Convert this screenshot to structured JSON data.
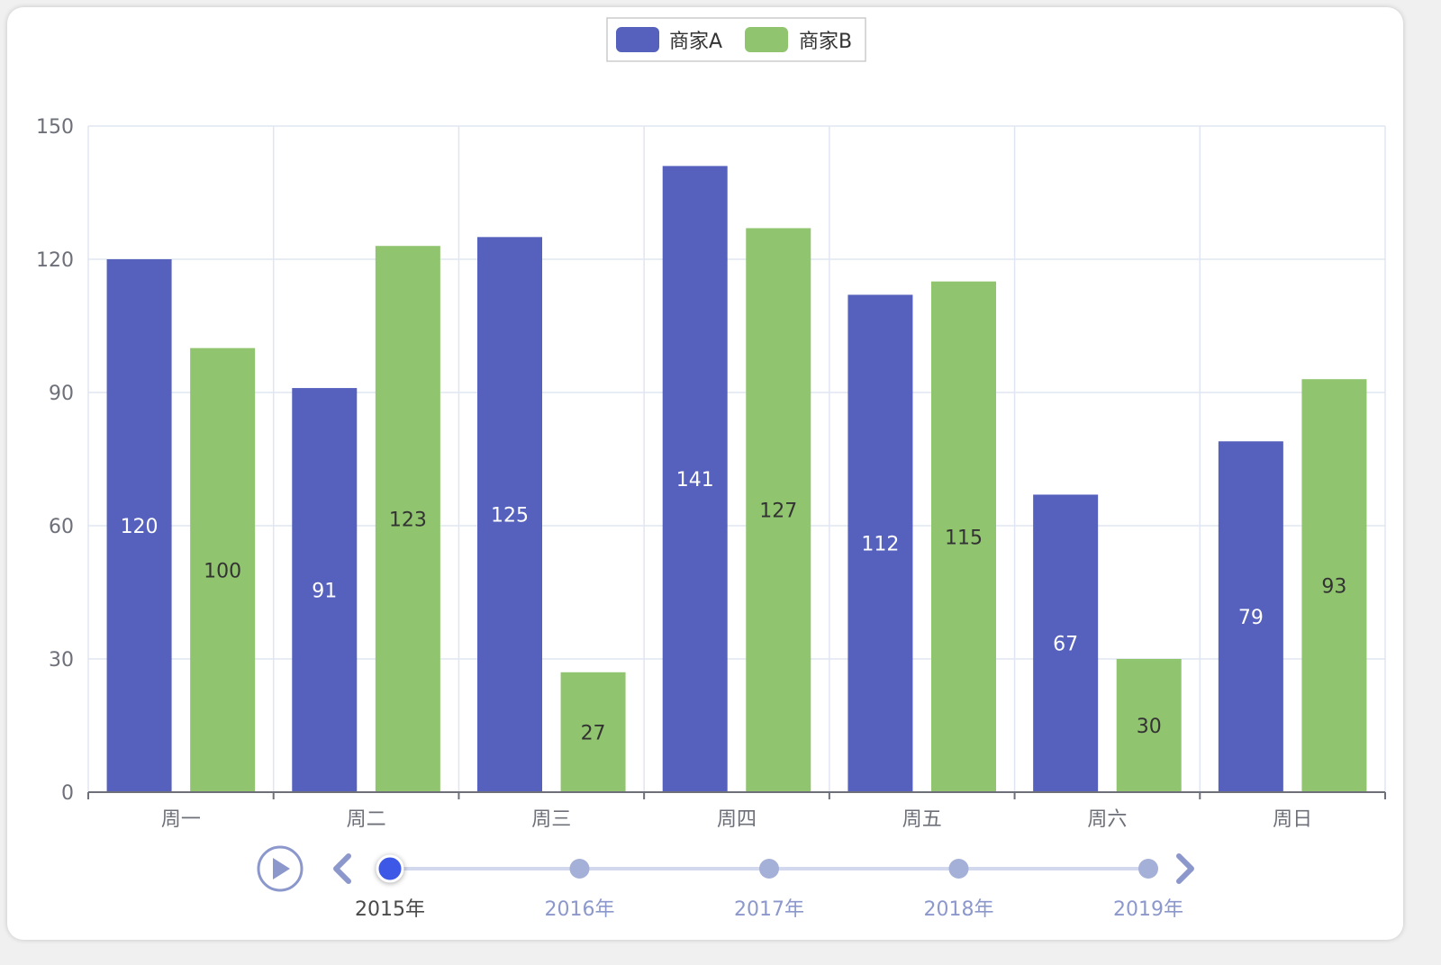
{
  "chart_data": {
    "type": "bar",
    "categories": [
      "周一",
      "周二",
      "周三",
      "周四",
      "周五",
      "周六",
      "周日"
    ],
    "series": [
      {
        "name": "商家A",
        "values": [
          120,
          91,
          125,
          141,
          112,
          67,
          79
        ],
        "color": "#5561bd",
        "label_color": "#ffffff"
      },
      {
        "name": "商家B",
        "values": [
          100,
          123,
          27,
          127,
          115,
          30,
          93
        ],
        "color": "#91c46f",
        "label_color": "#333333"
      }
    ],
    "y_ticks": [
      "0",
      "30",
      "60",
      "90",
      "120",
      "150"
    ],
    "ylim": [
      0,
      150
    ],
    "grid": true,
    "legend_position": "top-center",
    "data_labels_position": "inside-center"
  },
  "timeline": {
    "years": [
      "2015年",
      "2016年",
      "2017年",
      "2018年",
      "2019年"
    ],
    "current_index": 0,
    "active_color": "#3d58e6",
    "inactive_color": "#a5b0d8",
    "current_text_color": "#4a4a4a",
    "inactive_text_color": "#8c98cc",
    "play_icon": "play-icon",
    "prev_icon": "chevron-left-icon",
    "next_icon": "chevron-right-icon"
  }
}
